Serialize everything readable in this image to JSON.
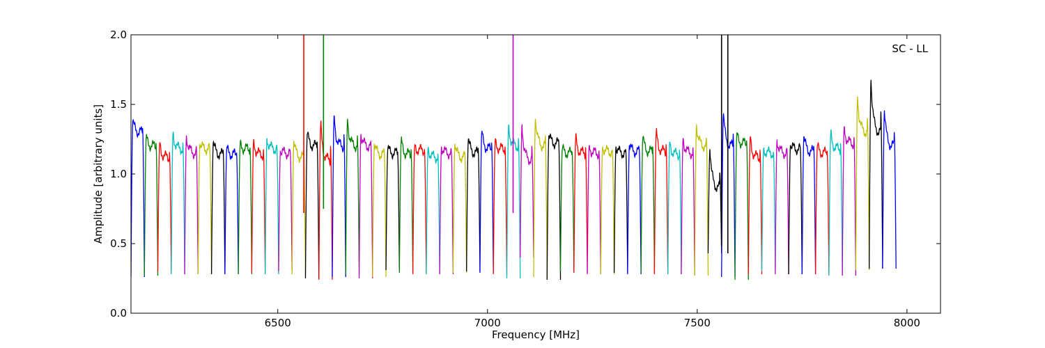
{
  "chart_data": {
    "type": "line",
    "xlabel": "Frequency [MHz]",
    "ylabel": "Amplitude [arbitrary units]",
    "annotation": "SC - LL",
    "annotation_position": "top-right",
    "xlim": [
      6150,
      8080
    ],
    "ylim": [
      0,
      2.0
    ],
    "x_ticks": [
      6500,
      7000,
      7500,
      8000
    ],
    "y_ticks": [
      0.0,
      0.5,
      1.0,
      1.5,
      2.0
    ],
    "x_tick_labels": [
      "6500",
      "7000",
      "7500",
      "8000"
    ],
    "y_tick_labels": [
      "0.0",
      "0.5",
      "1.0",
      "1.5",
      "2.0"
    ],
    "grid": false,
    "channel_width_mhz": 32,
    "series": [
      {
        "color": "#0000ff",
        "start": 6150,
        "level": 1.3,
        "edge": 1.38,
        "min": 0.26
      },
      {
        "color": "#008000",
        "start": 6182,
        "level": 1.2,
        "edge": 1.26,
        "min": 0.27
      },
      {
        "color": "#ff0000",
        "start": 6214,
        "level": 1.12,
        "edge": 1.22,
        "min": 0.3
      },
      {
        "color": "#00bfbf",
        "start": 6246,
        "level": 1.18,
        "edge": 1.3,
        "min": 0.28
      },
      {
        "color": "#bf00bf",
        "start": 6278,
        "level": 1.15,
        "edge": 1.28,
        "min": 0.28
      },
      {
        "color": "#bfbf00",
        "start": 6310,
        "level": 1.18,
        "edge": 1.22,
        "min": 0.28
      },
      {
        "color": "#000000",
        "start": 6342,
        "level": 1.14,
        "edge": 1.23,
        "min": 0.28
      },
      {
        "color": "#0000ff",
        "start": 6374,
        "level": 1.14,
        "edge": 1.18,
        "min": 0.28
      },
      {
        "color": "#008000",
        "start": 6406,
        "level": 1.18,
        "edge": 1.21,
        "min": 0.28
      },
      {
        "color": "#ff0000",
        "start": 6438,
        "level": 1.14,
        "edge": 1.24,
        "min": 0.29
      },
      {
        "color": "#00bfbf",
        "start": 6470,
        "level": 1.18,
        "edge": 1.26,
        "min": 0.28
      },
      {
        "color": "#bf00bf",
        "start": 6502,
        "level": 1.15,
        "edge": 1.17,
        "min": 0.3
      },
      {
        "color": "#bfbf00",
        "start": 6534,
        "level": 1.12,
        "edge": 1.24,
        "min": 0.28
      },
      {
        "color": "#000000",
        "start": 6566,
        "level": 1.2,
        "edge": 1.29,
        "min": 0.25
      },
      {
        "color": "#ff0000",
        "start": 6598,
        "level": 1.1,
        "edge": 1.36,
        "min": 0.24
      },
      {
        "color": "#0000ff",
        "start": 6630,
        "level": 1.2,
        "edge": 1.42,
        "min": 0.26
      },
      {
        "color": "#008000",
        "start": 6662,
        "level": 1.2,
        "edge": 1.4,
        "min": 0.28
      },
      {
        "color": "#bf00bf",
        "start": 6694,
        "level": 1.2,
        "edge": 1.29,
        "min": 0.25
      },
      {
        "color": "#bfbf00",
        "start": 6726,
        "level": 1.14,
        "edge": 1.22,
        "min": 0.26
      },
      {
        "color": "#000000",
        "start": 6758,
        "level": 1.15,
        "edge": 1.18,
        "min": 0.31
      },
      {
        "color": "#008000",
        "start": 6790,
        "level": 1.14,
        "edge": 1.24,
        "min": 0.29
      },
      {
        "color": "#ff0000",
        "start": 6822,
        "level": 1.17,
        "edge": 1.2,
        "min": 0.28
      },
      {
        "color": "#00bfbf",
        "start": 6854,
        "level": 1.12,
        "edge": 1.19,
        "min": 0.28
      },
      {
        "color": "#bf00bf",
        "start": 6886,
        "level": 1.15,
        "edge": 1.2,
        "min": 0.28
      },
      {
        "color": "#bfbf00",
        "start": 6918,
        "level": 1.12,
        "edge": 1.22,
        "min": 0.29
      },
      {
        "color": "#000000",
        "start": 6950,
        "level": 1.15,
        "edge": 1.25,
        "min": 0.3
      },
      {
        "color": "#0000ff",
        "start": 6982,
        "level": 1.18,
        "edge": 1.3,
        "min": 0.29
      },
      {
        "color": "#ff0000",
        "start": 7014,
        "level": 1.18,
        "edge": 1.23,
        "min": 0.28
      },
      {
        "color": "#00bfbf",
        "start": 7046,
        "level": 1.2,
        "edge": 1.35,
        "min": 0.25
      },
      {
        "color": "#bf00bf",
        "start": 7078,
        "level": 1.1,
        "edge": 1.36,
        "min": 0.4
      },
      {
        "color": "#bfbf00",
        "start": 7110,
        "level": 1.2,
        "edge": 1.4,
        "min": 0.26
      },
      {
        "color": "#000000",
        "start": 7142,
        "level": 1.22,
        "edge": 1.28,
        "min": 0.24
      },
      {
        "color": "#008000",
        "start": 7174,
        "level": 1.15,
        "edge": 1.18,
        "min": 0.3
      },
      {
        "color": "#ff0000",
        "start": 7206,
        "level": 1.15,
        "edge": 1.26,
        "min": 0.29
      },
      {
        "color": "#bf00bf",
        "start": 7238,
        "level": 1.15,
        "edge": 1.2,
        "min": 0.28
      },
      {
        "color": "#bfbf00",
        "start": 7270,
        "level": 1.16,
        "edge": 1.2,
        "min": 0.28
      },
      {
        "color": "#000000",
        "start": 7302,
        "level": 1.15,
        "edge": 1.2,
        "min": 0.29
      },
      {
        "color": "#0000ff",
        "start": 7334,
        "level": 1.16,
        "edge": 1.21,
        "min": 0.28
      },
      {
        "color": "#008000",
        "start": 7366,
        "level": 1.16,
        "edge": 1.26,
        "min": 0.29
      },
      {
        "color": "#ff0000",
        "start": 7398,
        "level": 1.16,
        "edge": 1.3,
        "min": 0.28
      },
      {
        "color": "#00bfbf",
        "start": 7430,
        "level": 1.14,
        "edge": 1.23,
        "min": 0.28
      },
      {
        "color": "#bf00bf",
        "start": 7462,
        "level": 1.15,
        "edge": 1.26,
        "min": 0.28
      },
      {
        "color": "#bfbf00",
        "start": 7494,
        "level": 1.2,
        "edge": 1.36,
        "min": 0.27
      },
      {
        "color": "#000000",
        "start": 7526,
        "level": 0.9,
        "edge": 1.18,
        "min": 0.43
      },
      {
        "color": "#0000ff",
        "start": 7558,
        "level": 1.2,
        "edge": 1.43,
        "min": 0.26
      },
      {
        "color": "#008000",
        "start": 7590,
        "level": 1.22,
        "edge": 1.28,
        "min": 0.24
      },
      {
        "color": "#ff0000",
        "start": 7622,
        "level": 1.12,
        "edge": 1.26,
        "min": 0.28
      },
      {
        "color": "#00bfbf",
        "start": 7654,
        "level": 1.15,
        "edge": 1.18,
        "min": 0.3
      },
      {
        "color": "#bf00bf",
        "start": 7686,
        "level": 1.15,
        "edge": 1.25,
        "min": 0.28
      },
      {
        "color": "#000000",
        "start": 7718,
        "level": 1.18,
        "edge": 1.21,
        "min": 0.28
      },
      {
        "color": "#0000ff",
        "start": 7750,
        "level": 1.16,
        "edge": 1.27,
        "min": 0.28
      },
      {
        "color": "#ff0000",
        "start": 7782,
        "level": 1.15,
        "edge": 1.2,
        "min": 0.28
      },
      {
        "color": "#00bfbf",
        "start": 7814,
        "level": 1.18,
        "edge": 1.29,
        "min": 0.27
      },
      {
        "color": "#bf00bf",
        "start": 7846,
        "level": 1.22,
        "edge": 1.34,
        "min": 0.27
      },
      {
        "color": "#bfbf00",
        "start": 7878,
        "level": 1.3,
        "edge": 1.56,
        "min": 0.31
      },
      {
        "color": "#000000",
        "start": 7910,
        "level": 1.3,
        "edge": 1.68,
        "min": 0.32
      },
      {
        "color": "#0000ff",
        "start": 7942,
        "level": 1.2,
        "edge": 1.46,
        "min": 0.32
      }
    ],
    "spikes": [
      {
        "color": "#ff0000",
        "x": 6562,
        "top": 2.0,
        "bottom": 0.72
      },
      {
        "color": "#008000",
        "x": 6609,
        "top": 2.0,
        "bottom": 0.75
      },
      {
        "color": "#bf00bf",
        "x": 7061,
        "top": 2.0,
        "bottom": 0.72
      },
      {
        "color": "#000000",
        "x": 7558,
        "top": 2.0,
        "bottom": 0.48
      },
      {
        "color": "#000000",
        "x": 7573,
        "top": 2.0,
        "bottom": 0.43
      }
    ]
  }
}
